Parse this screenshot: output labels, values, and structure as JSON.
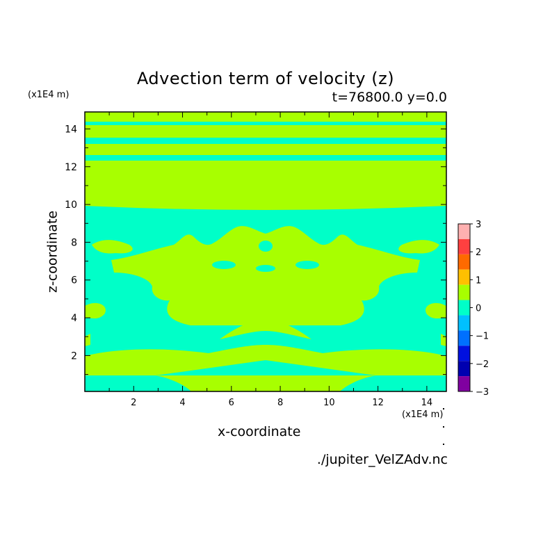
{
  "chart_data": {
    "type": "contour",
    "title": "Advection term of velocity (z)",
    "subtitle": "t=76800.0 y=0.0",
    "xlabel": "x-coordinate",
    "ylabel": "z-coordinate",
    "x_unit": "(x1E4 m)",
    "y_unit": "(x1E4 m)",
    "xlim": [
      0,
      14.8
    ],
    "ylim": [
      0.1,
      14.9
    ],
    "x_ticks": [
      "2",
      "4",
      "6",
      "8",
      "10",
      "12",
      "14"
    ],
    "y_ticks": [
      "2",
      "4",
      "6",
      "8",
      "10",
      "12",
      "14"
    ],
    "colorbar": {
      "levels": [
        "3",
        "2",
        "1",
        "0",
        "−1",
        "−2",
        "−3"
      ],
      "colors": [
        "#ffb0b0",
        "#ff4040",
        "#ff6a00",
        "#ffc000",
        "#a8ff00",
        "#00ffc8",
        "#00c0ff",
        "#0070ff",
        "#0010e0",
        "#0000b0",
        "#8000a0"
      ]
    },
    "background_color": "#00ffc8",
    "dominant_region_color": "#a8ff00",
    "footer": "./jupiter_VelZAdv.nc"
  }
}
